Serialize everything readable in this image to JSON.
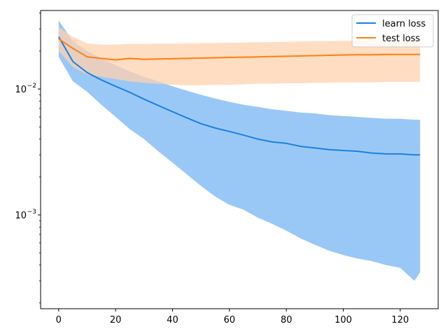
{
  "chart_data": {
    "type": "line",
    "title": "",
    "xlabel": "",
    "ylabel": "",
    "x_scale": "linear",
    "y_scale": "log",
    "xlim": [
      -6.35,
      133.35
    ],
    "ylim": [
      0.00018,
      0.042
    ],
    "grid": false,
    "legend_position": "top-right",
    "x_ticks": [
      {
        "value": 0,
        "label": "0"
      },
      {
        "value": 20,
        "label": "20"
      },
      {
        "value": 40,
        "label": "40"
      },
      {
        "value": 60,
        "label": "60"
      },
      {
        "value": 80,
        "label": "80"
      },
      {
        "value": 100,
        "label": "100"
      },
      {
        "value": 120,
        "label": "120"
      }
    ],
    "y_ticks": [
      {
        "value": 0.001,
        "base": "10",
        "exp": "−3"
      },
      {
        "value": 0.01,
        "base": "10",
        "exp": "−2"
      }
    ],
    "x": [
      0,
      5,
      10,
      15,
      20,
      25,
      30,
      35,
      40,
      45,
      50,
      55,
      60,
      65,
      70,
      75,
      80,
      85,
      90,
      95,
      100,
      105,
      110,
      115,
      120,
      125,
      127
    ],
    "series": [
      {
        "name": "learn loss",
        "color": "#1f77b4",
        "line_color": "#1a80e6",
        "band_color": "#8fc2f5",
        "values": [
          0.026,
          0.0165,
          0.0135,
          0.0118,
          0.0105,
          0.0094,
          0.0083,
          0.0074,
          0.0066,
          0.0059,
          0.0053,
          0.0049,
          0.0046,
          0.0043,
          0.004,
          0.0038,
          0.0037,
          0.0035,
          0.0034,
          0.0033,
          0.00325,
          0.0032,
          0.0031,
          0.00305,
          0.00305,
          0.003,
          0.003
        ],
        "upper": [
          0.035,
          0.024,
          0.02,
          0.0175,
          0.0155,
          0.0138,
          0.0125,
          0.0115,
          0.0105,
          0.0097,
          0.009,
          0.0084,
          0.0079,
          0.0075,
          0.0072,
          0.0069,
          0.0067,
          0.0065,
          0.0064,
          0.0062,
          0.0061,
          0.006,
          0.0059,
          0.0058,
          0.0058,
          0.0057,
          0.0057
        ],
        "lower": [
          0.018,
          0.0115,
          0.0095,
          0.0075,
          0.006,
          0.0048,
          0.004,
          0.0032,
          0.0026,
          0.0021,
          0.0017,
          0.0014,
          0.0012,
          0.0011,
          0.00095,
          0.00085,
          0.00075,
          0.00065,
          0.00058,
          0.00052,
          0.00048,
          0.00045,
          0.00043,
          0.0004,
          0.00038,
          0.0003,
          0.00035
        ]
      },
      {
        "name": "test loss",
        "color": "#ff7f0e",
        "line_color": "#ff7f0e",
        "band_color": "#ffd2ad",
        "values": [
          0.025,
          0.021,
          0.018,
          0.0175,
          0.017,
          0.0175,
          0.0172,
          0.0173,
          0.0174,
          0.0175,
          0.0176,
          0.0177,
          0.0178,
          0.0179,
          0.018,
          0.0181,
          0.0182,
          0.0183,
          0.0184,
          0.0185,
          0.0186,
          0.0187,
          0.0187,
          0.0188,
          0.0188,
          0.0188,
          0.0188
        ],
        "upper": [
          0.031,
          0.026,
          0.023,
          0.0225,
          0.0225,
          0.0228,
          0.0228,
          0.0229,
          0.0229,
          0.023,
          0.0231,
          0.0232,
          0.0233,
          0.0234,
          0.0235,
          0.0236,
          0.0237,
          0.0238,
          0.0239,
          0.024,
          0.0241,
          0.0242,
          0.0243,
          0.0244,
          0.0245,
          0.0245,
          0.0245
        ],
        "lower": [
          0.02,
          0.015,
          0.013,
          0.0125,
          0.012,
          0.0115,
          0.0112,
          0.011,
          0.0108,
          0.0107,
          0.0107,
          0.0108,
          0.0108,
          0.0109,
          0.011,
          0.011,
          0.0111,
          0.0111,
          0.0112,
          0.0112,
          0.0113,
          0.0113,
          0.0113,
          0.0114,
          0.0114,
          0.0114,
          0.0114
        ]
      }
    ]
  }
}
